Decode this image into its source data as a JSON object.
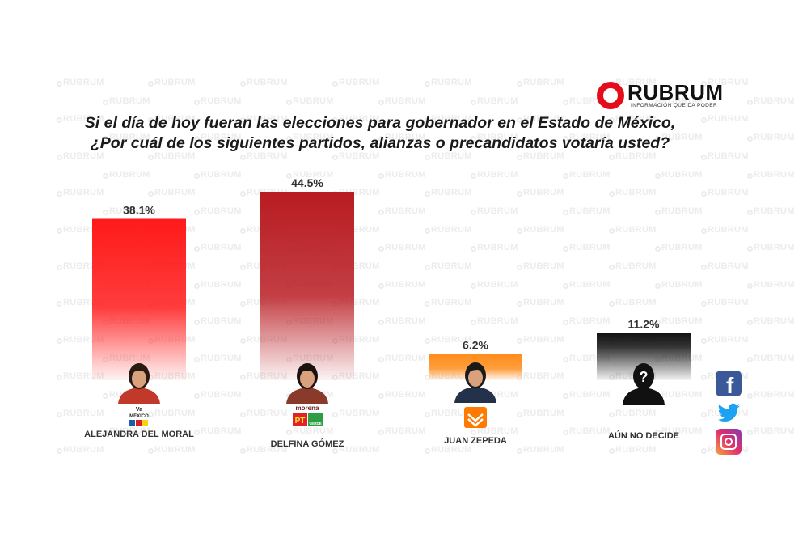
{
  "watermark": {
    "text": "RUBRUM"
  },
  "logo": {
    "name": "RUBRUM",
    "tagline": "INFORMACIÓN QUE DA PODER",
    "color": "#e50d1a"
  },
  "question": {
    "line1": "Si el día de hoy fueran las elecciones para gobernador en el Estado de México,",
    "line2": "¿Por cuál de los siguientes partidos, alianzas o precandidatos votaría usted?"
  },
  "chart_data": {
    "type": "bar",
    "categories": [
      "ALEJANDRA DEL MORAL",
      "DELFINA GÓMEZ",
      "JUAN ZEPEDA",
      "AÚN NO DECIDE"
    ],
    "values": [
      38.1,
      44.5,
      6.2,
      11.2
    ],
    "value_labels": [
      "38.1%",
      "44.5%",
      "6.2%",
      "11.2%"
    ],
    "colors": [
      "#ff1a1a",
      "#b81c22",
      "#ff8c1a",
      "#111111"
    ],
    "ylim": [
      0,
      44.5
    ],
    "title": "",
    "xlabel": "",
    "ylabel": "",
    "grid": false,
    "legend": "none"
  },
  "party_logos": {
    "alianza_line1": "Va",
    "alianza_line2": "MÉXICO",
    "morena_label": "morena",
    "pt_label": "PT",
    "verde_label": "VERDE"
  },
  "social": {
    "facebook": "facebook-icon",
    "twitter": "twitter-icon",
    "instagram": "instagram-icon"
  }
}
